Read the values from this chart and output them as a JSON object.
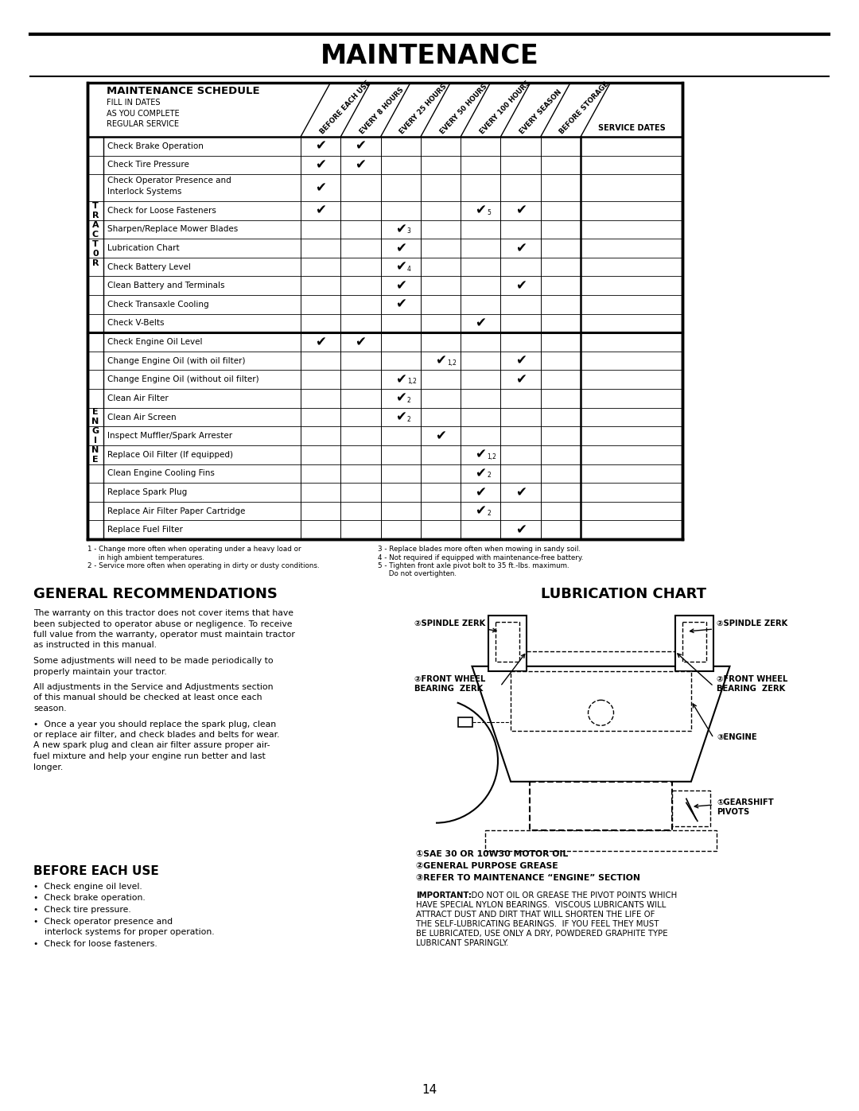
{
  "title": "MAINTENANCE",
  "page_num": "14",
  "table_header_bold": "MAINTENANCE SCHEDULE",
  "table_subheader": "FILL IN DATES\nAS YOU COMPLETE\nREGULAR SERVICE",
  "col_headers": [
    "BEFORE EACH USE",
    "EVERY 8 HOURS",
    "EVERY 25 HOURS",
    "EVERY 50 HOURS",
    "EVERY 100 HOURS",
    "EVERY SEASON",
    "BEFORE STORAGE"
  ],
  "service_dates_label": "SERVICE DATES",
  "tractor_label": "T\nR\nA\nC\nT\n0\nR",
  "engine_label": "E\nN\nG\nI\nN\nE",
  "tractor_rows": [
    {
      "label": "Check Brake Operation",
      "checks": {
        "0": true,
        "1": true
      }
    },
    {
      "label": "Check Tire Pressure",
      "checks": {
        "0": true,
        "1": true
      }
    },
    {
      "label": "Check Operator Presence and\nInterlock Systems",
      "checks": {
        "0": true
      }
    },
    {
      "label": "Check for Loose Fasteners",
      "checks": {
        "0": true,
        "4": "5",
        "5": true
      }
    },
    {
      "label": "Sharpen/Replace Mower Blades",
      "checks": {
        "2": "3"
      }
    },
    {
      "label": "Lubrication Chart",
      "checks": {
        "2": true,
        "5": true
      }
    },
    {
      "label": "Check Battery Level",
      "checks": {
        "2": "4"
      }
    },
    {
      "label": "Clean Battery and Terminals",
      "checks": {
        "2": true,
        "5": true
      }
    },
    {
      "label": "Check Transaxle Cooling",
      "checks": {
        "2": true
      }
    },
    {
      "label": "Check V-Belts",
      "checks": {
        "4": true
      }
    }
  ],
  "engine_rows": [
    {
      "label": "Check Engine Oil Level",
      "checks": {
        "0": true,
        "1": true
      }
    },
    {
      "label": "Change Engine Oil (with oil filter)",
      "checks": {
        "3": "1,2",
        "5": true
      }
    },
    {
      "label": "Change Engine Oil (without oil filter)",
      "checks": {
        "2": "1,2",
        "5": true
      }
    },
    {
      "label": "Clean Air Filter",
      "checks": {
        "2": "2"
      }
    },
    {
      "label": "Clean Air Screen",
      "checks": {
        "2": "2"
      }
    },
    {
      "label": "Inspect Muffler/Spark Arrester",
      "checks": {
        "3": true
      }
    },
    {
      "label": "Replace Oil Filter (If equipped)",
      "checks": {
        "4": "1,2"
      }
    },
    {
      "label": "Clean Engine Cooling Fins",
      "checks": {
        "4": "2"
      }
    },
    {
      "label": "Replace Spark Plug",
      "checks": {
        "4": true,
        "5": true
      }
    },
    {
      "label": "Replace Air Filter Paper Cartridge",
      "checks": {
        "4": "2"
      }
    },
    {
      "label": "Replace Fuel Filter",
      "checks": {
        "5": true
      }
    }
  ],
  "footnote_left": [
    "1 - Change more often when operating under a heavy load or",
    "     in high ambient temperatures.",
    "2 - Service more often when operating in dirty or dusty conditions."
  ],
  "footnote_right": [
    "3 - Replace blades more often when mowing in sandy soil.",
    "4 - Not required if equipped with maintenance-free battery.",
    "5 - Tighten front axle pivot bolt to 35 ft.-lbs. maximum.",
    "     Do not overtighten."
  ],
  "general_rec_title": "GENERAL RECOMMENDATIONS",
  "general_rec_paras": [
    "The warranty on this tractor does not cover items that have\nbeen subjected to operator abuse or negligence. To receive\nfull value from the warranty, operator must maintain tractor\nas instructed in this manual.",
    "Some adjustments will need to be made periodically to\nproperly maintain your tractor.",
    "All adjustments in the Service and Adjustments section\nof this manual should be checked at least once each\nseason.",
    "•  Once a year you should replace the spark plug, clean\nor replace air filter, and check blades and belts for wear.\nA new spark plug and clean air filter assure proper air-\nfuel mixture and help your engine run better and last\nlonger."
  ],
  "before_each_use_title": "BEFORE EACH USE",
  "before_each_use_items": [
    "Check engine oil level.",
    "Check brake operation.",
    "Check tire pressure.",
    "Check operator presence and\n    interlock systems for proper operation.",
    "Check for loose fasteners."
  ],
  "lub_chart_title": "LUBRICATION CHART",
  "lub_legend": [
    "①SAE 30 OR 10W30 MOTOR OIL",
    "②GENERAL PURPOSE GREASE",
    "③REFER TO MAINTENANCE “ENGINE” SECTION"
  ],
  "lub_important_label": "IMPORTANT:",
  "lub_important_body": "  DO NOT OIL OR GREASE THE PIVOT POINTS WHICH HAVE SPECIAL NYLON BEARINGS.  VISCOUS LUBRICANTS WILL ATTRACT DUST AND DIRT THAT WILL SHORTEN THE LIFE OF THE SELF-LUBRICATING BEARINGS.  IF YOU FEEL THEY MUST BE LUBRICATED, USE ONLY A DRY, POWDERED GRAPHITE TYPE LUBRICANT SPARINGLY.",
  "bg_color": "#ffffff"
}
